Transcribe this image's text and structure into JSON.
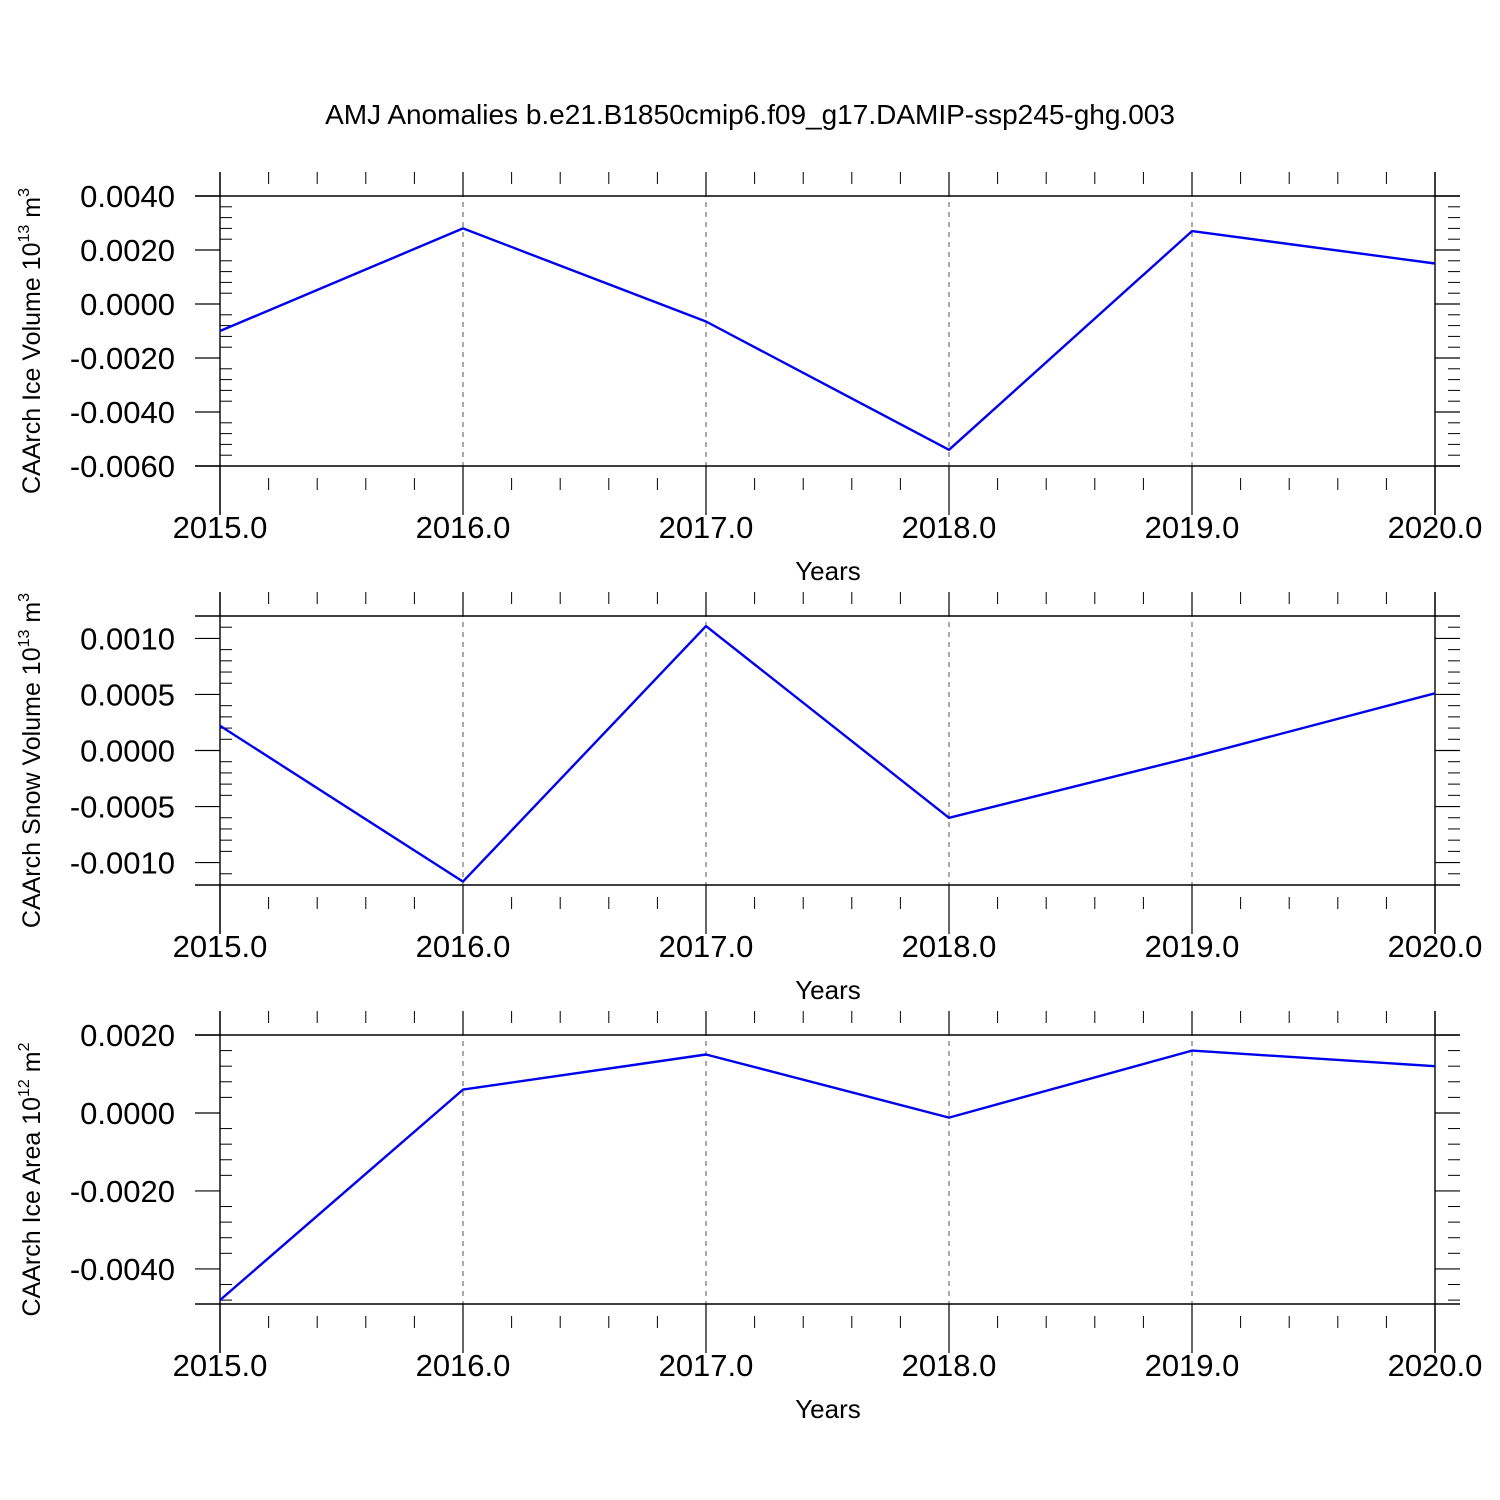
{
  "title": "AMJ Anomalies b.e21.B1850cmip6.f09_g17.DAMIP-ssp245-ghg.003",
  "colors": {
    "line": "#0000ee",
    "axis": "#000000",
    "grid": "#555555"
  },
  "chart_data": [
    {
      "type": "line",
      "ylabel": "CAArch Ice Volume 10",
      "ylabel_exp": "13",
      "ylabel_unit": " m",
      "ylabel_unit_exp": "3",
      "xlabel": "Years",
      "x": [
        2015,
        2016,
        2017,
        2018,
        2019,
        2020
      ],
      "values": [
        -0.001,
        0.0028,
        -0.00065,
        -0.0054,
        0.0027,
        0.0015
      ],
      "xlim": [
        2015,
        2020.1
      ],
      "ylim": [
        -0.006,
        0.004
      ],
      "yticks": [
        0.004,
        0.002,
        0.0,
        -0.002,
        -0.004,
        -0.006
      ],
      "ytick_labels": [
        "0.0040",
        "0.0020",
        "0.0000",
        "-0.0020",
        "-0.0040",
        "-0.0060"
      ],
      "yminor": 0.0004,
      "grid": "x-dashed"
    },
    {
      "type": "line",
      "ylabel": "CAArch Snow Volume 10",
      "ylabel_exp": "13",
      "ylabel_unit": " m",
      "ylabel_unit_exp": "3",
      "xlabel": "Years",
      "x": [
        2015,
        2016,
        2017,
        2018,
        2019,
        2020
      ],
      "values": [
        0.00022,
        -0.00117,
        0.00111,
        -0.0006,
        -6e-05,
        0.00051
      ],
      "xlim": [
        2015,
        2020.1
      ],
      "ylim": [
        -0.0012,
        0.0012
      ],
      "yticks": [
        0.001,
        0.0005,
        0.0,
        -0.0005,
        -0.001
      ],
      "ytick_labels": [
        "0.0010",
        "0.0005",
        "0.0000",
        "-0.0005",
        "-0.0010"
      ],
      "yminor": 0.0001,
      "grid": "x-dashed"
    },
    {
      "type": "line",
      "ylabel": "CAArch Ice Area 10",
      "ylabel_exp": "12",
      "ylabel_unit": " m",
      "ylabel_unit_exp": "2",
      "xlabel": "Years",
      "x": [
        2015,
        2016,
        2017,
        2018,
        2019,
        2020
      ],
      "values": [
        -0.0048,
        0.0006,
        0.0015,
        -0.00012,
        0.0016,
        0.0012
      ],
      "xlim": [
        2015,
        2020.1
      ],
      "ylim": [
        -0.0049,
        0.002
      ],
      "yticks": [
        0.002,
        0.0,
        -0.002,
        -0.004
      ],
      "ytick_labels": [
        "0.0020",
        "0.0000",
        "-0.0020",
        "-0.0040"
      ],
      "yminor": 0.0004,
      "grid": "x-dashed"
    }
  ],
  "xticks": [
    2015,
    2016,
    2017,
    2018,
    2019,
    2020
  ],
  "xtick_labels": [
    "2015.0",
    "2016.0",
    "2017.0",
    "2018.0",
    "2019.0",
    "2020.0"
  ]
}
